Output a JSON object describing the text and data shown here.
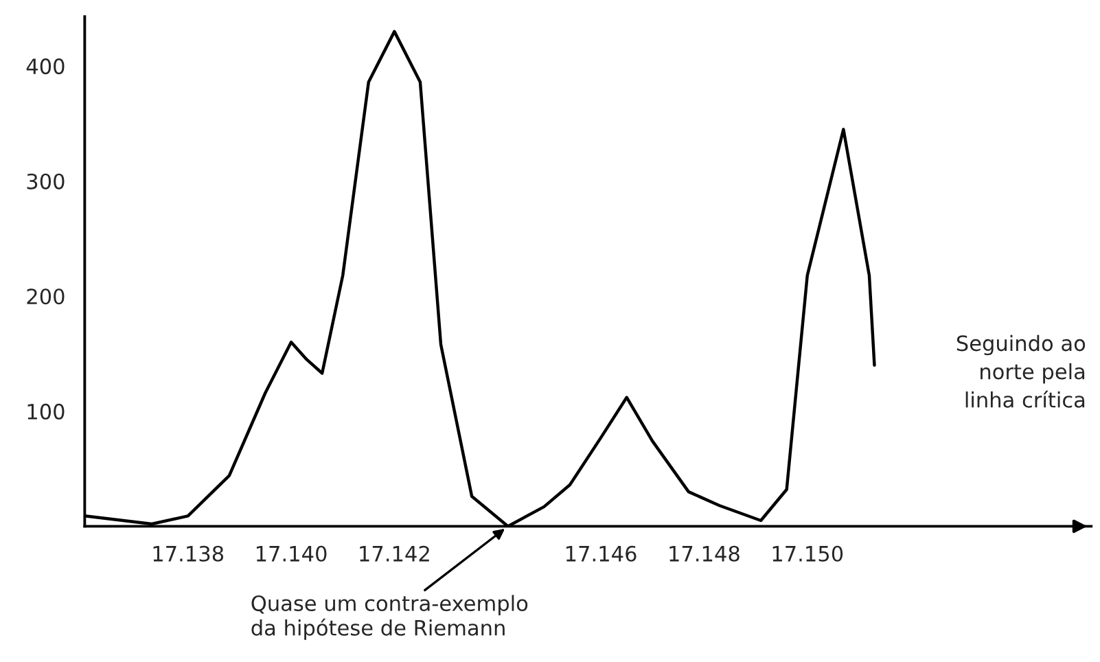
{
  "chart_data": {
    "type": "line",
    "color": "#000000",
    "x": [
      17.136,
      17.1373,
      17.138,
      17.1388,
      17.1395,
      17.14,
      17.1403,
      17.1406,
      17.141,
      17.1415,
      17.142,
      17.1425,
      17.1429,
      17.1435,
      17.1442,
      17.1449,
      17.1454,
      17.146,
      17.1465,
      17.147,
      17.1477,
      17.1483,
      17.1491,
      17.1496,
      17.15,
      17.1507,
      17.1512,
      17.1513
    ],
    "values": [
      9,
      2,
      9,
      44,
      116,
      160,
      145,
      133,
      218,
      386,
      430,
      386,
      158,
      26,
      0,
      17,
      36,
      77,
      112,
      74,
      30,
      18,
      5,
      32,
      218,
      345,
      218,
      140
    ],
    "xlim": [
      17.136,
      17.1555
    ],
    "ylim": [
      0,
      443
    ],
    "xticks": [
      17.138,
      {
        "value": 17.14,
        "label": "17.140"
      },
      17.142,
      17.146,
      17.148,
      {
        "value": 17.15,
        "label": "17.150"
      }
    ],
    "yticks": [
      100,
      200,
      300,
      400
    ],
    "grid": false,
    "line_style": "solid",
    "annotations": [
      "Seguindo ao\nnorte pela\nlinha crítica",
      {
        "text": "Quase um contra-exemplo\nda hipótese de Riemann",
        "x": 17.1442,
        "y": 0
      }
    ]
  }
}
